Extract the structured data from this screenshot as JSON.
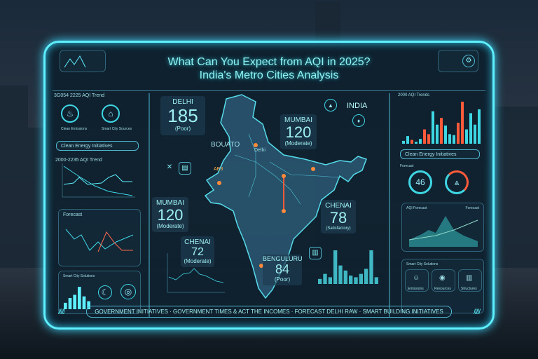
{
  "title": {
    "line1": "What Can You Expect from AQI in 2025?",
    "line2": "India's Metro Cities Analysis"
  },
  "map_label": "INDIA",
  "left": {
    "trend_title": "3G054 2225 AQI Trend",
    "icon1_label": "Clean Emissions",
    "icon2_label": "Smart City Sources",
    "energy_title": "Clean Energy Initiatives",
    "trend2_title": "2000-2235 AQI Trend",
    "panel3_title": "Forecast",
    "panel4_title": "Smart City Solutions"
  },
  "cities": [
    {
      "name": "DELHI",
      "value": "185",
      "status": "(Poor)"
    },
    {
      "name": "MUMBAI",
      "value": "120",
      "status": "(Moderate)"
    },
    {
      "name": "MUMBAI",
      "value": "120",
      "status": "(Moderate)"
    },
    {
      "name": "CHENAI",
      "value": "72",
      "status": "(Moderate)"
    },
    {
      "name": "CHENAI",
      "value": "78",
      "status": "(Satisfactory)"
    },
    {
      "name": "BENGULURU",
      "value": "84",
      "status": "(Poor)"
    }
  ],
  "map_places": [
    "BOUATO",
    "AE3",
    "Delhi"
  ],
  "right": {
    "bars_title": "2000 AQI Trends",
    "energy_title": "Clean Energy Initiatives",
    "gauge_title": "Forecast",
    "gauge_value": "46",
    "area_title": "AQI Forecast",
    "area_right": "Forecast",
    "smart_title": "Smart City Solutions",
    "smart_items": [
      "Emissions",
      "Resources",
      "Structures"
    ]
  },
  "right_bars": [
    [
      3,
      "c"
    ],
    [
      8,
      "c"
    ],
    [
      4,
      "o"
    ],
    [
      2,
      "c"
    ],
    [
      5,
      "c"
    ],
    [
      15,
      "o"
    ],
    [
      10,
      "o"
    ],
    [
      34,
      "c"
    ],
    [
      20,
      "c"
    ],
    [
      27,
      "o"
    ],
    [
      19,
      "c"
    ],
    [
      10,
      "c"
    ],
    [
      9,
      "c"
    ],
    [
      22,
      "o"
    ],
    [
      44,
      "o"
    ],
    [
      15,
      "c"
    ],
    [
      32,
      "c"
    ],
    [
      20,
      "c"
    ],
    [
      36,
      "c"
    ]
  ],
  "center_bars": [
    6,
    12,
    8,
    40,
    22,
    16,
    10,
    8,
    12,
    18,
    40,
    8
  ],
  "left_bars": [
    4,
    7,
    9,
    14,
    8,
    5
  ],
  "ticker": "GOVERNMENT INITIATIVES · GOVERNMENT TIMES & ACT THE INCOMES · FORECAST DELHI RAW · SMART BUILDING INITIATIVES",
  "colors": {
    "accent": "#5ef0ff",
    "alert": "#ff5a3a"
  }
}
